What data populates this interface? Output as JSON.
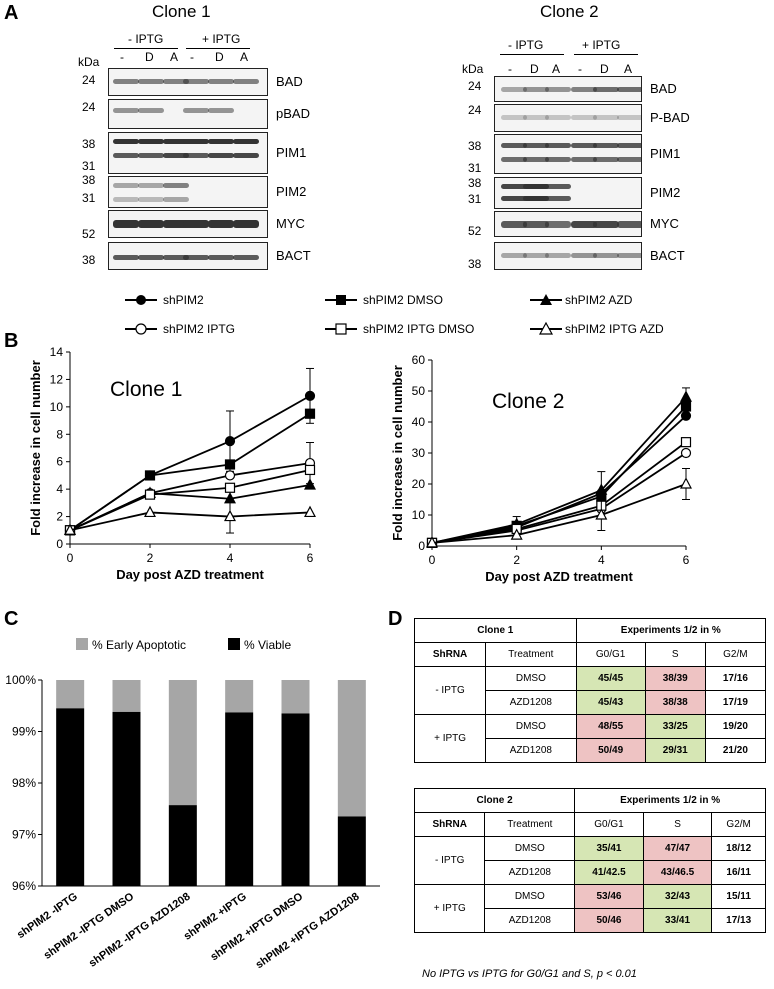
{
  "panels": {
    "A": "A",
    "B": "B",
    "C": "C",
    "D": "D"
  },
  "panelA": {
    "clone1": {
      "title": "Clone 1",
      "minus_iptg": "- IPTG",
      "plus_iptg": "+ IPTG",
      "kda": "kDa",
      "lanes": [
        "-",
        "D",
        "A",
        "-",
        "D",
        "A"
      ],
      "blots": [
        {
          "label": "BAD",
          "markers": [
            "24"
          ]
        },
        {
          "label": "pBAD",
          "markers": [
            "24"
          ]
        },
        {
          "label": "PIM1",
          "markers": [
            "38",
            "31"
          ]
        },
        {
          "label": "PIM2",
          "markers": [
            "38",
            "31"
          ]
        },
        {
          "label": "MYC",
          "markers": [
            "52"
          ]
        },
        {
          "label": "BACT",
          "markers": [
            "38"
          ]
        }
      ]
    },
    "clone2": {
      "title": "Clone 2",
      "minus_iptg": "- IPTG",
      "plus_iptg": "+ IPTG",
      "kda": "kDa",
      "lanes": [
        "-",
        "D",
        "A",
        "-",
        "D",
        "A"
      ],
      "blots": [
        {
          "label": "BAD",
          "markers": [
            "24"
          ]
        },
        {
          "label": "P-BAD",
          "markers": [
            "24"
          ]
        },
        {
          "label": "PIM1",
          "markers": [
            "38",
            "31"
          ]
        },
        {
          "label": "PIM2",
          "markers": [
            "38",
            "31"
          ]
        },
        {
          "label": "MYC",
          "markers": [
            "52"
          ]
        },
        {
          "label": "BACT",
          "markers": [
            "38"
          ]
        }
      ]
    }
  },
  "legendB": [
    "shPIM2",
    "shPIM2 DMSO",
    "shPIM2 AZD",
    "shPIM2 IPTG",
    "shPIM2 IPTG DMSO",
    "shPIM2 IPTG AZD"
  ],
  "chart_data": [
    {
      "type": "line",
      "title": "Clone 1",
      "xlabel": "Day post AZD treatment",
      "ylabel": "Fold increase in cell number",
      "x": [
        0,
        2,
        4,
        6
      ],
      "xlim": [
        0,
        6
      ],
      "ylim": [
        0,
        14
      ],
      "yticks": [
        "0",
        "2",
        "4",
        "6",
        "8",
        "10",
        "12",
        "14"
      ],
      "xticks": [
        "0",
        "2",
        "4",
        "6"
      ],
      "series": [
        {
          "name": "shPIM2",
          "marker": "circle-filled",
          "values": [
            1,
            5,
            7.5,
            10.8
          ],
          "err": [
            0,
            0,
            2.2,
            2
          ]
        },
        {
          "name": "shPIM2 DMSO",
          "marker": "square-filled",
          "values": [
            1,
            5,
            5.8,
            9.5
          ],
          "err": [
            0,
            0,
            0,
            0
          ]
        },
        {
          "name": "shPIM2 AZD",
          "marker": "triangle-filled",
          "values": [
            1,
            3.7,
            3.3,
            4.3
          ],
          "err": [
            0,
            0,
            0,
            0
          ]
        },
        {
          "name": "shPIM2 IPTG",
          "marker": "circle-open",
          "values": [
            1,
            3.7,
            5,
            5.9
          ],
          "err": [
            0,
            0,
            0,
            1.5
          ]
        },
        {
          "name": "shPIM2 IPTG DMSO",
          "marker": "square-open",
          "values": [
            1,
            3.6,
            4.1,
            5.4
          ],
          "err": [
            0,
            0,
            0,
            0
          ]
        },
        {
          "name": "shPIM2 IPTG AZD",
          "marker": "triangle-open",
          "values": [
            1,
            2.3,
            2,
            2.3
          ],
          "err": [
            0,
            0,
            1.2,
            0
          ]
        }
      ]
    },
    {
      "type": "line",
      "title": "Clone 2",
      "xlabel": "Day post AZD treatment",
      "ylabel": "Fold increase in cell number",
      "x": [
        0,
        2,
        4,
        6
      ],
      "xlim": [
        0,
        6
      ],
      "ylim": [
        0,
        60
      ],
      "yticks": [
        "0",
        "10",
        "20",
        "30",
        "40",
        "50",
        "60"
      ],
      "xticks": [
        "0",
        "2",
        "4",
        "6"
      ],
      "series": [
        {
          "name": "shPIM2",
          "marker": "circle-filled",
          "values": [
            1,
            6,
            17,
            42
          ],
          "err": [
            0,
            0,
            0,
            0
          ]
        },
        {
          "name": "shPIM2 DMSO",
          "marker": "square-filled",
          "values": [
            1,
            6.5,
            16,
            45
          ],
          "err": [
            0,
            0,
            0,
            0
          ]
        },
        {
          "name": "shPIM2 AZD",
          "marker": "triangle-filled",
          "values": [
            1,
            7,
            18,
            48
          ],
          "err": [
            0,
            2.5,
            6,
            3
          ]
        },
        {
          "name": "shPIM2 IPTG",
          "marker": "circle-open",
          "values": [
            1,
            5,
            12,
            30
          ],
          "err": [
            0,
            0,
            0,
            0
          ]
        },
        {
          "name": "shPIM2 IPTG DMSO",
          "marker": "square-open",
          "values": [
            1,
            5.5,
            13,
            33.5
          ],
          "err": [
            0,
            0,
            0,
            0
          ]
        },
        {
          "name": "shPIM2 IPTG AZD",
          "marker": "triangle-open",
          "values": [
            1,
            3.5,
            10,
            20
          ],
          "err": [
            0,
            0,
            5,
            5
          ]
        }
      ]
    },
    {
      "type": "bar",
      "stacked": true,
      "legend": [
        "% Early Apoptotic",
        "% Viable"
      ],
      "colors": {
        "apoptotic": "#a6a6a6",
        "viable": "#000000"
      },
      "categories": [
        "shPIM2 -IPTG",
        "shPIM2 -IPTG DMSO",
        "shPIM2 -IPTG AZD1208",
        "shPIM2 +IPTG",
        "shPIM2 +IPTG DMSO",
        "shPIM2 +IPTG AZD1208"
      ],
      "viable": [
        99.45,
        99.38,
        97.57,
        99.37,
        99.35,
        97.35
      ],
      "ylim": [
        96,
        100
      ],
      "yticks": [
        "96%",
        "97%",
        "98%",
        "99%",
        "100%"
      ]
    }
  ],
  "tableD": {
    "tables": [
      {
        "clone": "Clone 1",
        "experiments": "Experiments 1/2  in %",
        "headers": [
          "ShRNA",
          "Treatment",
          "G0/G1",
          "S",
          "G2/M"
        ],
        "groups": [
          {
            "name": "- IPTG",
            "rows": [
              [
                "DMSO",
                "45/45",
                "38/39",
                "17/16"
              ],
              [
                "AZD1208",
                "45/43",
                "38/38",
                "17/19"
              ]
            ]
          },
          {
            "name": "+ IPTG",
            "rows": [
              [
                "DMSO",
                "48/55",
                "33/25",
                "19/20"
              ],
              [
                "AZD1208",
                "50/49",
                "29/31",
                "21/20"
              ]
            ]
          }
        ]
      },
      {
        "clone": "Clone 2",
        "experiments": "Experiments 1/2  in %",
        "headers": [
          "ShRNA",
          "Treatment",
          "G0/G1",
          "S",
          "G2/M"
        ],
        "groups": [
          {
            "name": "- IPTG",
            "rows": [
              [
                "DMSO",
                "35/41",
                "47/47",
                "18/12"
              ],
              [
                "AZD1208",
                "41/42.5",
                "43/46.5",
                "16/11"
              ]
            ]
          },
          {
            "name": "+ IPTG",
            "rows": [
              [
                "DMSO",
                "53/46",
                "32/43",
                "15/11"
              ],
              [
                "AZD1208",
                "50/46",
                "33/41",
                "17/13"
              ]
            ]
          }
        ]
      }
    ],
    "note": "No IPTG vs IPTG for G0/G1 and S, p < 0.01"
  }
}
